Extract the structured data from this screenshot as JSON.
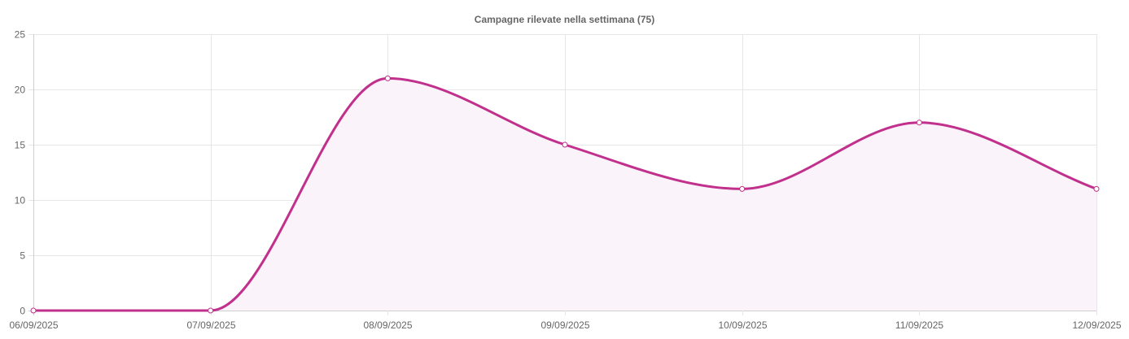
{
  "title": "Campagne rilevate nella settimana (75)",
  "colors": {
    "line": "#c0308c",
    "fill": "#fbf3fa",
    "grid": "#e6e6e6",
    "text": "#666666"
  },
  "chart_data": {
    "type": "line",
    "title": "Campagne rilevate nella settimana (75)",
    "categories": [
      "06/09/2025",
      "07/09/2025",
      "08/09/2025",
      "09/09/2025",
      "10/09/2025",
      "11/09/2025",
      "12/09/2025"
    ],
    "series": [
      {
        "values": [
          0,
          0,
          21,
          15,
          11,
          17,
          11
        ]
      }
    ],
    "xlabel": "",
    "ylabel": "",
    "ylim": [
      0,
      25
    ],
    "yticks": [
      0,
      5,
      10,
      15,
      20,
      25
    ],
    "grid": true,
    "smooth": true,
    "filled": true,
    "legend": "none"
  }
}
